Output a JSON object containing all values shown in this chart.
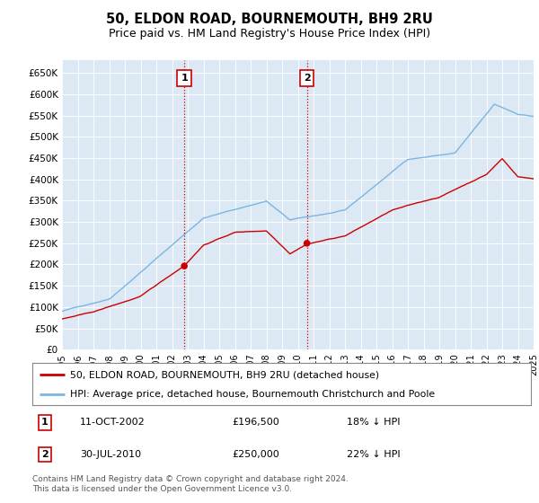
{
  "title": "50, ELDON ROAD, BOURNEMOUTH, BH9 2RU",
  "subtitle": "Price paid vs. HM Land Registry's House Price Index (HPI)",
  "background_color": "#dce9f5",
  "fig_bg_color": "#ffffff",
  "ylim": [
    0,
    680000
  ],
  "yticks": [
    0,
    50000,
    100000,
    150000,
    200000,
    250000,
    300000,
    350000,
    400000,
    450000,
    500000,
    550000,
    600000,
    650000
  ],
  "ytick_labels": [
    "£0",
    "£50K",
    "£100K",
    "£150K",
    "£200K",
    "£250K",
    "£300K",
    "£350K",
    "£400K",
    "£450K",
    "£500K",
    "£550K",
    "£600K",
    "£650K"
  ],
  "hpi_color": "#7ab6e0",
  "price_color": "#cc0000",
  "marker_color": "#cc0000",
  "transaction1": {
    "date": "11-OCT-2002",
    "price": 196500,
    "label": "1",
    "x": 2002.78
  },
  "transaction2": {
    "date": "30-JUL-2010",
    "price": 250000,
    "label": "2",
    "x": 2010.58
  },
  "legend_line1": "50, ELDON ROAD, BOURNEMOUTH, BH9 2RU (detached house)",
  "legend_line2": "HPI: Average price, detached house, Bournemouth Christchurch and Poole",
  "table_row1": [
    "1",
    "11-OCT-2002",
    "£196,500",
    "18% ↓ HPI"
  ],
  "table_row2": [
    "2",
    "30-JUL-2010",
    "£250,000",
    "22% ↓ HPI"
  ],
  "footnote": "Contains HM Land Registry data © Crown copyright and database right 2024.\nThis data is licensed under the Open Government Licence v3.0.",
  "xmin": 1995,
  "xmax": 2025
}
